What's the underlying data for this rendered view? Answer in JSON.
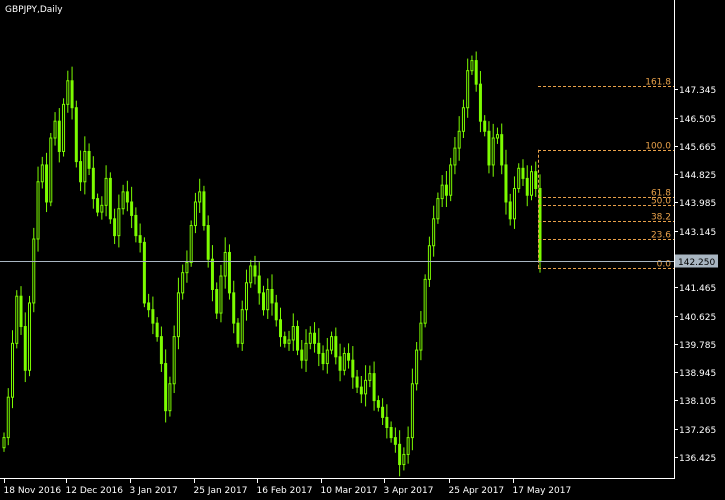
{
  "chart_data": {
    "type": "candlestick",
    "symbol_label": "GBPJPY,Daily",
    "ylim": [
      135.8,
      150.0
    ],
    "y_ticks": [
      "147.345",
      "146.505",
      "145.665",
      "144.825",
      "143.985",
      "143.145",
      "141.465",
      "140.625",
      "139.785",
      "138.945",
      "138.105",
      "137.265",
      "136.425"
    ],
    "x_tick_labels": [
      "18 Nov 2016",
      "12 Dec 2016",
      "3 Jan 2017",
      "25 Jan 2017",
      "16 Feb 2017",
      "10 Mar 2017",
      "3 Apr 2017",
      "25 Apr 2017",
      "17 May 2017"
    ],
    "current_price": "142.250",
    "close_series": [
      137.0,
      138.2,
      139.8,
      141.2,
      140.3,
      139.0,
      141.0,
      142.9,
      144.6,
      145.1,
      144.0,
      145.9,
      146.4,
      145.5,
      146.9,
      147.6,
      146.8,
      145.2,
      144.6,
      145.5,
      145.0,
      144.1,
      143.7,
      143.9,
      144.7,
      143.5,
      143.0,
      143.8,
      144.3,
      144.0,
      143.6,
      143.0,
      142.8,
      141.0,
      140.8,
      140.4,
      140.0,
      139.2,
      137.8,
      138.6,
      140.0,
      141.3,
      141.9,
      142.2,
      143.3,
      144.0,
      144.3,
      143.3,
      142.3,
      141.4,
      140.7,
      141.8,
      142.5,
      141.3,
      140.4,
      139.8,
      140.8,
      141.6,
      142.1,
      141.8,
      141.3,
      140.8,
      141.4,
      141.0,
      140.5,
      140.0,
      139.8,
      139.9,
      140.3,
      139.6,
      139.3,
      139.8,
      140.1,
      139.8,
      139.5,
      139.2,
      139.6,
      140.0,
      139.4,
      139.0,
      139.5,
      139.3,
      138.8,
      138.5,
      138.3,
      138.7,
      138.9,
      138.1,
      137.9,
      137.6,
      137.3,
      137.0,
      136.8,
      136.2,
      136.5,
      137.0,
      138.6,
      139.6,
      140.4,
      141.7,
      142.7,
      143.5,
      144.1,
      144.5,
      144.2,
      145.1,
      145.6,
      146.1,
      146.8,
      147.9,
      148.2,
      147.5,
      146.4,
      146.1,
      145.1,
      145.9,
      146.0,
      145.1,
      144.0,
      143.5,
      144.4,
      145.0,
      144.7,
      144.2,
      144.9,
      144.4,
      142.25
    ],
    "fibonacci": {
      "levels": [
        {
          "label": "161.8",
          "value": 147.45
        },
        {
          "label": "100.0",
          "value": 145.55
        },
        {
          "label": "61.8",
          "value": 144.15
        },
        {
          "label": "50.0",
          "value": 143.9
        },
        {
          "label": "38.2",
          "value": 143.43
        },
        {
          "label": "23.6",
          "value": 142.9
        },
        {
          "label": "0.0",
          "value": 142.04
        }
      ]
    },
    "colors": {
      "background": "#000000",
      "bull": "#7CFC00",
      "bear": "#7CFC00",
      "fib": "#E8A14A",
      "price_line": "#A9B6C2"
    }
  }
}
